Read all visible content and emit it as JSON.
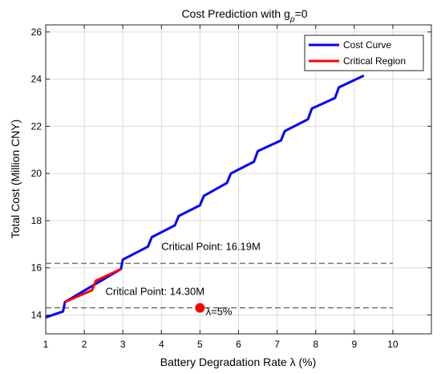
{
  "chart_data": {
    "type": "line",
    "title_main": "Cost Prediction with g",
    "title_sub": "ρ",
    "title_tail": "=0",
    "xlabel": "Battery Degradation Rate λ (%)",
    "ylabel": "Total Cost (Million CNY)",
    "xlim": [
      1,
      11
    ],
    "ylim": [
      13.2,
      26.3
    ],
    "x_ticks": [
      1,
      2,
      3,
      4,
      5,
      6,
      7,
      8,
      9,
      10
    ],
    "y_ticks": [
      14,
      16,
      18,
      20,
      22,
      24,
      26
    ],
    "grid": true,
    "legend": {
      "position": "top-right",
      "entries": [
        {
          "label": "Cost Curve",
          "color": "#0000ff"
        },
        {
          "label": "Critical Region",
          "color": "#ff0000"
        }
      ]
    },
    "series": [
      {
        "name": "Cost Curve",
        "color": "#0000ff",
        "points": [
          [
            1.0,
            13.9
          ],
          [
            1.45,
            14.15
          ],
          [
            1.5,
            14.55
          ],
          [
            2.95,
            15.95
          ],
          [
            3.0,
            16.35
          ],
          [
            3.65,
            16.9
          ],
          [
            3.75,
            17.3
          ],
          [
            4.35,
            17.8
          ],
          [
            4.45,
            18.2
          ],
          [
            5.0,
            18.65
          ],
          [
            5.1,
            19.05
          ],
          [
            5.7,
            19.6
          ],
          [
            5.8,
            20.0
          ],
          [
            6.4,
            20.5
          ],
          [
            6.5,
            20.95
          ],
          [
            7.1,
            21.4
          ],
          [
            7.2,
            21.8
          ],
          [
            7.8,
            22.3
          ],
          [
            7.9,
            22.75
          ],
          [
            8.5,
            23.2
          ],
          [
            8.6,
            23.65
          ],
          [
            9.25,
            24.15
          ]
        ]
      },
      {
        "name": "Critical Region",
        "color": "#ff0000",
        "points": [
          [
            1.5,
            14.55
          ],
          [
            2.2,
            15.05
          ],
          [
            2.3,
            15.45
          ],
          [
            2.95,
            15.95
          ]
        ]
      }
    ],
    "reference_lines": [
      {
        "y": 16.19,
        "label": "Critical Point: 16.19M",
        "label_x": 4.0,
        "label_y": 16.75
      },
      {
        "y": 14.3,
        "label": "Critical Point: 14.30M",
        "label_x": 2.55,
        "label_y": 14.85
      }
    ],
    "marker": {
      "x": 5.0,
      "y": 14.3,
      "color": "#ff0000",
      "label": "λ=5%",
      "label_x": 5.15,
      "label_y": 14.0
    }
  }
}
